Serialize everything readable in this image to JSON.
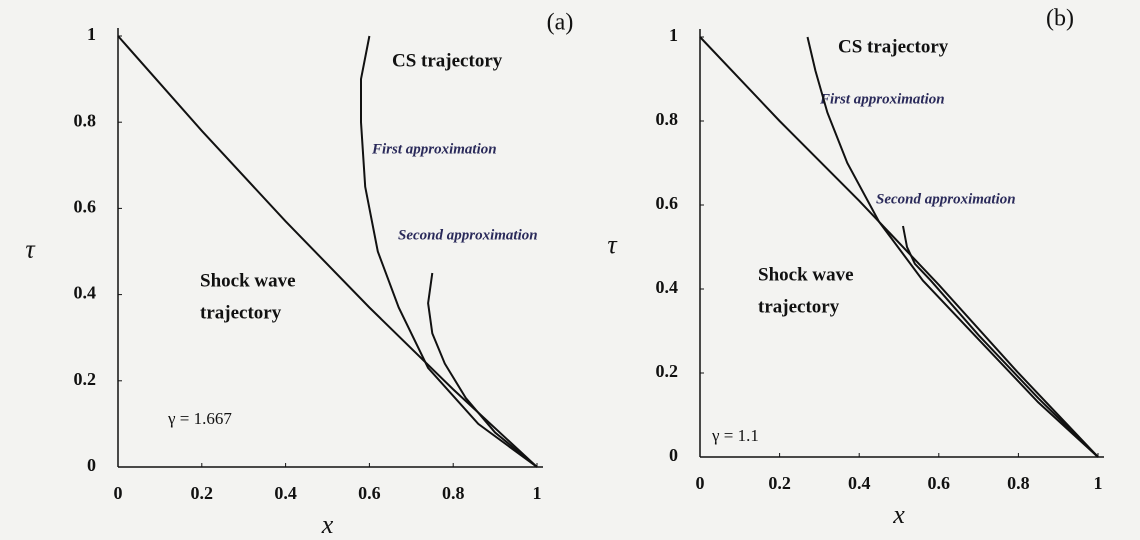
{
  "chart_data": [
    {
      "type": "line",
      "panel_label": "(a)",
      "x_label": "x",
      "y_label": "τ",
      "xlim": [
        0,
        1
      ],
      "ylim": [
        0,
        1
      ],
      "xticks": [
        0,
        0.2,
        0.4,
        0.6,
        0.8,
        1
      ],
      "yticks": [
        0,
        0.2,
        0.4,
        0.6,
        0.8,
        1
      ],
      "annotations": [
        "CS trajectory",
        "First approximation",
        "Second approximation",
        "Shock wave",
        "trajectory",
        "γ = 1.667"
      ],
      "series": [
        {
          "color": "#111111",
          "x": [
            0,
            0.2,
            0.4,
            0.6,
            0.8,
            1
          ],
          "values": [
            1,
            0.78,
            0.57,
            0.37,
            0.18,
            0
          ]
        },
        {
          "color": "#111111",
          "x": [
            0.6,
            0.58,
            0.58,
            0.59,
            0.62,
            0.67,
            0.74,
            0.86,
            1
          ],
          "values": [
            1,
            0.9,
            0.8,
            0.65,
            0.5,
            0.37,
            0.23,
            0.1,
            0
          ]
        },
        {
          "color": "#111111",
          "x": [
            0.75,
            0.74,
            0.75,
            0.78,
            0.83,
            0.9,
            1
          ],
          "values": [
            0.45,
            0.38,
            0.31,
            0.24,
            0.16,
            0.08,
            0
          ]
        }
      ]
    },
    {
      "type": "line",
      "panel_label": "(b)",
      "x_label": "x",
      "y_label": "τ",
      "xlim": [
        0,
        1
      ],
      "ylim": [
        0,
        1
      ],
      "xticks": [
        0,
        0.2,
        0.4,
        0.6,
        0.8,
        1
      ],
      "yticks": [
        0,
        0.2,
        0.4,
        0.6,
        0.8,
        1
      ],
      "annotations": [
        "CS trajectory",
        "First approximation",
        "Second approximation",
        "Shock wave",
        "trajectory",
        "γ = 1.1"
      ],
      "series": [
        {
          "color": "#111111",
          "x": [
            0,
            0.2,
            0.4,
            0.6,
            0.8,
            1
          ],
          "values": [
            1,
            0.8,
            0.61,
            0.41,
            0.2,
            0
          ]
        },
        {
          "color": "#111111",
          "x": [
            0.27,
            0.29,
            0.32,
            0.37,
            0.45,
            0.56,
            0.7,
            0.85,
            1
          ],
          "values": [
            1,
            0.92,
            0.82,
            0.7,
            0.56,
            0.42,
            0.28,
            0.13,
            0
          ]
        },
        {
          "color": "#111111",
          "x": [
            0.51,
            0.52,
            0.54,
            0.58,
            0.7,
            0.85,
            1
          ],
          "values": [
            0.55,
            0.5,
            0.46,
            0.42,
            0.29,
            0.14,
            0
          ]
        }
      ]
    }
  ]
}
